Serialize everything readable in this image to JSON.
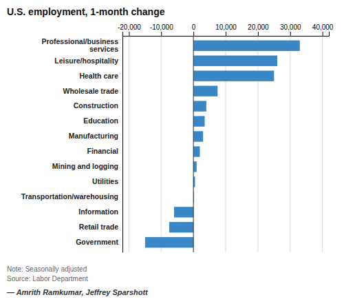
{
  "chart_data": {
    "type": "bar",
    "orientation": "horizontal",
    "title": "U.S. employment, 1-month change",
    "categories": [
      "Professional/business\nservices",
      "Leisure/hospitality",
      "Health care",
      "Wholesale trade",
      "Construction",
      "Education",
      "Manufacturing",
      "Financial",
      "Mining and logging",
      "Utilities",
      "Transportation/warehousing",
      "Information",
      "Retail trade",
      "Government"
    ],
    "values": [
      33000,
      26000,
      25000,
      7500,
      4000,
      3500,
      3000,
      2000,
      1000,
      500,
      200,
      -6000,
      -7500,
      -15000
    ],
    "color": "#3a87c8",
    "xlim": [
      -22000,
      42000
    ],
    "xticks": [
      {
        "value": -20000,
        "label": "-20,000"
      },
      {
        "value": -10000,
        "label": "-10,000"
      },
      0,
      {
        "value": 10000,
        "label": "10,000"
      },
      {
        "value": 20000,
        "label": "20,000"
      },
      {
        "value": 30000,
        "label": "30,000"
      },
      {
        "value": 40000,
        "label": "40,000"
      }
    ],
    "grid": true,
    "annotations": [
      "Note: Seasonally adjusted",
      "Source: Labor Department",
      "—  Amrith Ramkumar, Jeffrey Sparshott"
    ]
  }
}
